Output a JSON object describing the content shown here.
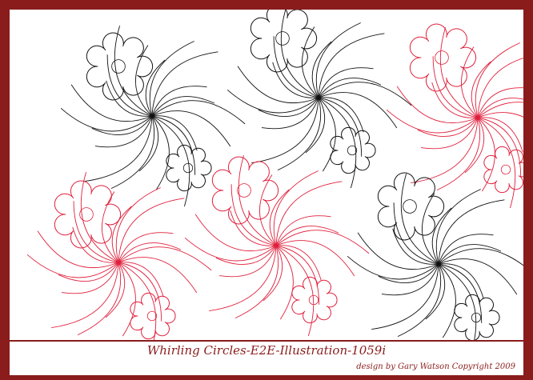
{
  "title": "Whirling Circles-E2E-Illustration-1059i",
  "credit": "design by Gary Watson Copyright 2009"
}
